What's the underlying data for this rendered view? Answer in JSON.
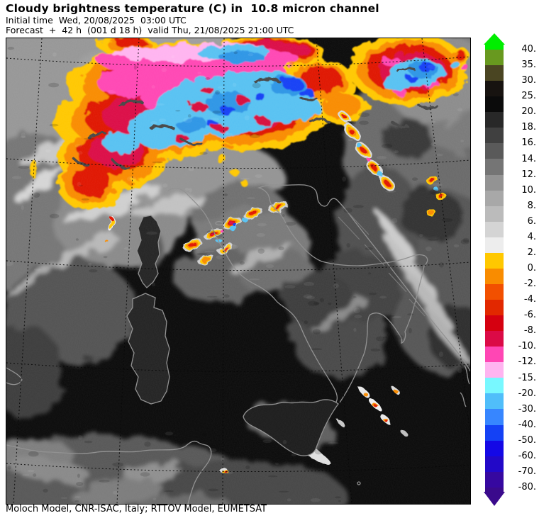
{
  "header": {
    "title": "Cloudy brightness temperature (C) in  10.8 micron channel",
    "initial_time_line": "Initial time  Wed, 20/08/2025  03:00 UTC",
    "forecast_line": "Forecast  +  42 h  (001 d 18 h)  valid Thu, 21/08/2025 21:00 UTC"
  },
  "footer": {
    "credits": "Moloch Model, CNR-ISAC, Italy; RTTOV Model, EUMETSAT"
  },
  "colorbar": {
    "unit": "C",
    "ticks": [
      "40.",
      "35.",
      "30.",
      "25.",
      "20.",
      "18.",
      "16.",
      "14.",
      "12.",
      "10.",
      "8.",
      "6.",
      "4.",
      "2.",
      "0.",
      "-2.",
      "-4.",
      "-6.",
      "-8.",
      "-10.",
      "-12.",
      "-15.",
      "-20.",
      "-30.",
      "-40.",
      "-50.",
      "-60.",
      "-70.",
      "-80."
    ],
    "segment_colors": [
      "#68991F",
      "#4A4522",
      "#171310",
      "#0B0B0B",
      "#282828",
      "#404040",
      "#5A5A5A",
      "#757575",
      "#939393",
      "#A8A8A8",
      "#BBBBBB",
      "#D4D4D4",
      "#EDEDED",
      "#FFC800",
      "#F98C00",
      "#F25000",
      "#E22800",
      "#D50010",
      "#DB0A46",
      "#FF46B4",
      "#FFB4F0",
      "#78F8FF",
      "#50BEFA",
      "#3786FF",
      "#1441F5",
      "#1408E6",
      "#2208C8",
      "#3608A0"
    ],
    "arrow_top_color": "#00EE00",
    "arrow_bottom_color": "#3A0A8C"
  }
}
